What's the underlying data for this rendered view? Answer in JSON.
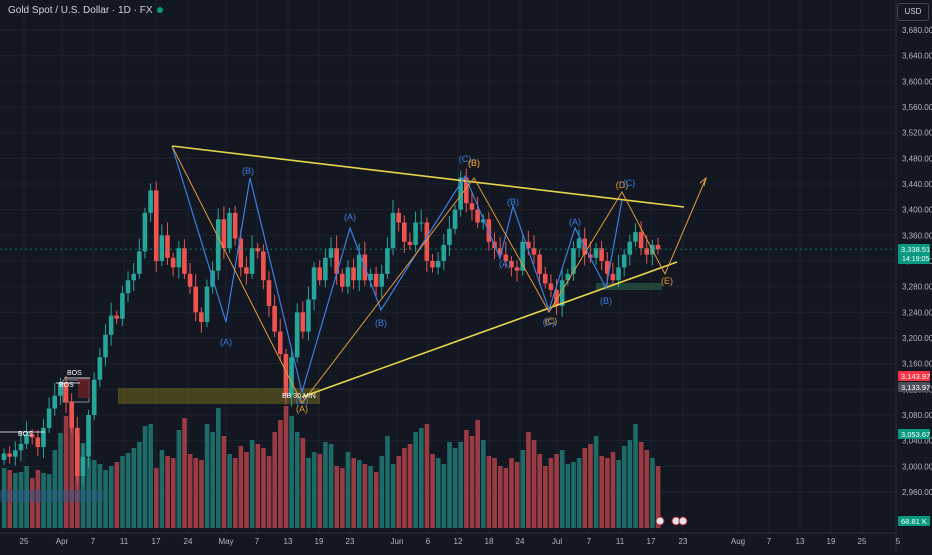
{
  "header": {
    "title": "Gold Spot / U.S. Dollar · 1D · FX",
    "currency_button": "USD"
  },
  "colors": {
    "bg": "#131722",
    "up": "#26a69a",
    "down": "#ef5350",
    "volume_up": "#1f7a73",
    "volume_down": "#b3424a",
    "grid": "#1e222d",
    "trendline": "#e6d44a",
    "wave_blue": "#3d7ee0",
    "wave_orange": "#e39b35",
    "text": "#b2b5be"
  },
  "price_scale": {
    "ticks": [
      "3,680.00",
      "3,640.00",
      "3,600.00",
      "3,560.00",
      "3,520.00",
      "3,480.00",
      "3,440.00",
      "3,400.00",
      "3,360.00",
      "3,320.00",
      "3,280.00",
      "3,240.00",
      "3,200.00",
      "3,160.00",
      "3,120.00",
      "3,080.00",
      "3,040.00",
      "3,000.00",
      "2,960.00"
    ],
    "badges": [
      {
        "text": "3,338.51",
        "sub": "14:19:05",
        "color": "#089981"
      },
      {
        "text": "3,143.97",
        "color": "#f23645"
      },
      {
        "text": "3,133.97",
        "color": "#4a4e59"
      },
      {
        "text": "3,053.67",
        "color": "#089981"
      },
      {
        "text": "68.81 K",
        "color": "#089981"
      }
    ]
  },
  "time_scale": {
    "ticks": [
      "25",
      "Apr",
      "7",
      "11",
      "17",
      "24",
      "May",
      "7",
      "13",
      "19",
      "23",
      "Jun",
      "6",
      "12",
      "18",
      "24",
      "Jul",
      "7",
      "11",
      "17",
      "23",
      "Aug",
      "7",
      "13",
      "19",
      "25",
      "5"
    ]
  },
  "annotations": {
    "bos": [
      "BOS",
      "BOS",
      "BOS"
    ],
    "bb": "BB 30 MIN",
    "waves": [
      "(A)",
      "(B)",
      "(C)",
      "(A)",
      "(B)",
      "(C)",
      "(B)",
      "(A)",
      "(C)",
      "(A)",
      "(B)",
      "(D)",
      "(C)",
      "(B)",
      "(A)",
      "(B)",
      "(C)",
      "(E)"
    ]
  },
  "chart_data": {
    "type": "candlestick",
    "title": "Gold Spot / U.S. Dollar · 1D · FX",
    "x_ticks": [
      "25",
      "Apr",
      "7",
      "11",
      "17",
      "24",
      "May",
      "7",
      "13",
      "19",
      "23",
      "Jun",
      "6",
      "12",
      "18",
      "24",
      "Jul",
      "7",
      "11",
      "17",
      "23",
      "Aug",
      "7",
      "13",
      "19",
      "25",
      "5"
    ],
    "ylim": [
      2930,
      3700
    ],
    "y_ticks": [
      2960,
      3000,
      3040,
      3080,
      3120,
      3160,
      3200,
      3240,
      3280,
      3320,
      3360,
      3400,
      3440,
      3480,
      3520,
      3560,
      3600,
      3640,
      3680
    ],
    "last_price": 3338.51,
    "close_series": [
      3020,
      3015,
      3025,
      3035,
      3050,
      3045,
      3030,
      3060,
      3090,
      3110,
      3130,
      3100,
      3060,
      2985,
      3015,
      3080,
      3135,
      3170,
      3205,
      3235,
      3230,
      3270,
      3290,
      3300,
      3335,
      3395,
      3430,
      3320,
      3360,
      3325,
      3310,
      3340,
      3300,
      3280,
      3240,
      3225,
      3280,
      3305,
      3385,
      3340,
      3395,
      3355,
      3310,
      3300,
      3340,
      3335,
      3290,
      3250,
      3210,
      3175,
      3110,
      3170,
      3240,
      3210,
      3260,
      3310,
      3290,
      3325,
      3340,
      3300,
      3280,
      3310,
      3290,
      3330,
      3290,
      3300,
      3280,
      3300,
      3340,
      3395,
      3380,
      3350,
      3345,
      3380,
      3380,
      3320,
      3310,
      3320,
      3345,
      3370,
      3400,
      3450,
      3410,
      3400,
      3380,
      3385,
      3350,
      3340,
      3330,
      3320,
      3310,
      3305,
      3350,
      3340,
      3330,
      3300,
      3285,
      3275,
      3250,
      3290,
      3300,
      3340,
      3355,
      3330,
      3325,
      3340,
      3320,
      3300,
      3290,
      3310,
      3330,
      3350,
      3365,
      3340,
      3330,
      3345,
      3338.51
    ]
  }
}
